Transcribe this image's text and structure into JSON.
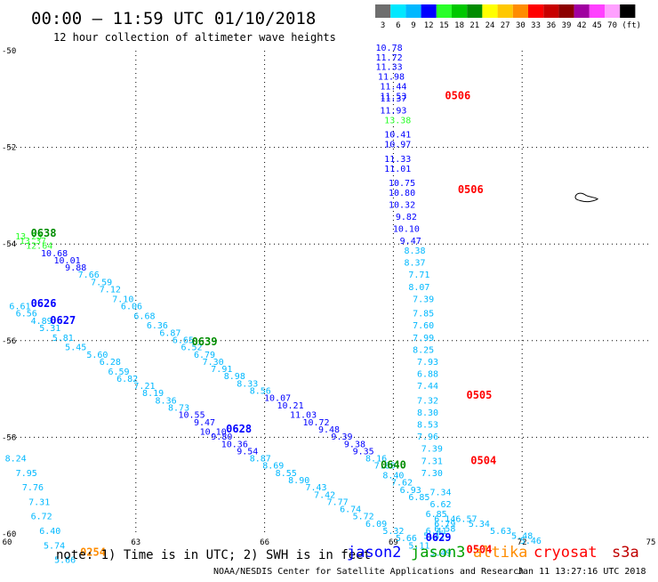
{
  "header": {
    "title": "00:00 – 11:59 UTC 01/10/2018",
    "subtitle": "12 hour collection of altimeter wave heights"
  },
  "scale": {
    "unit": "(ft)",
    "bins": [
      {
        "label": "3",
        "color": "#6e6e6e"
      },
      {
        "label": "6",
        "color": "#00e8ff"
      },
      {
        "label": "9",
        "color": "#00b8ff"
      },
      {
        "label": "12",
        "color": "#0000ff"
      },
      {
        "label": "15",
        "color": "#29ff29"
      },
      {
        "label": "18",
        "color": "#00c800"
      },
      {
        "label": "21",
        "color": "#008c00"
      },
      {
        "label": "24",
        "color": "#ffff00"
      },
      {
        "label": "27",
        "color": "#ffc800"
      },
      {
        "label": "30",
        "color": "#ff8c00"
      },
      {
        "label": "33",
        "color": "#ff0000"
      },
      {
        "label": "36",
        "color": "#c80000"
      },
      {
        "label": "39",
        "color": "#8c0000"
      },
      {
        "label": "42",
        "color": "#a000a0"
      },
      {
        "label": "45",
        "color": "#ff40ff"
      },
      {
        "label": "70",
        "color": "#ffa0ff"
      },
      {
        "label": "",
        "color": "#000000"
      }
    ]
  },
  "map": {
    "lon_min": 60,
    "lon_max": 75,
    "lat_min": -60,
    "lat_max": -50,
    "x_ticks": [
      "60",
      "63",
      "66",
      "69",
      "72",
      "75"
    ],
    "y_ticks": [
      "-50",
      "-52",
      "-54",
      "-56",
      "-58",
      "-60"
    ],
    "grid_style": "dotted"
  },
  "colors": {
    "c1": "#00b8ff",
    "c2": "#0000ff",
    "c3": "#29ff29",
    "c4": "#00c800",
    "c5": "#008c00",
    "time_red": "#ff0000",
    "time_green": "#008c00",
    "time_blue": "#0000ff",
    "time_orange": "#ff8c00",
    "jason2": "#0000ff",
    "jason3": "#00a000",
    "altika": "#ff8c00",
    "cryosat": "#ff0000",
    "s3a": "#c00000"
  },
  "tracks": [
    {
      "name": "pass-upper-right-1",
      "points": [
        {
          "lon": 68.9,
          "lat": -50.0,
          "v": "10.78",
          "c": "c2"
        },
        {
          "lon": 68.9,
          "lat": -50.2,
          "v": "11.72",
          "c": "c2"
        },
        {
          "lon": 68.9,
          "lat": -50.4,
          "v": "11.33",
          "c": "c2"
        },
        {
          "lon": 68.95,
          "lat": -50.6,
          "v": "11.98",
          "c": "c2"
        },
        {
          "lon": 69.0,
          "lat": -50.8,
          "v": "11.44",
          "c": "c2"
        },
        {
          "lon": 69.0,
          "lat": -51.0,
          "v": "11.53",
          "c": "c2"
        },
        {
          "lon": 69.0,
          "lat": -51.05,
          "v": "11.37",
          "c": "c2"
        },
        {
          "lon": 69.0,
          "lat": -51.3,
          "v": "11.93",
          "c": "c2"
        },
        {
          "lon": 69.1,
          "lat": -51.5,
          "v": "13.38",
          "c": "c3"
        },
        {
          "lon": 69.1,
          "lat": -51.8,
          "v": "10.41",
          "c": "c2"
        },
        {
          "lon": 69.1,
          "lat": -52.0,
          "v": "10.97",
          "c": "c2"
        },
        {
          "lon": 69.1,
          "lat": -52.3,
          "v": "11.33",
          "c": "c2"
        },
        {
          "lon": 69.1,
          "lat": -52.5,
          "v": "11.01",
          "c": "c2"
        },
        {
          "lon": 69.2,
          "lat": -52.8,
          "v": "10.75",
          "c": "c2"
        },
        {
          "lon": 69.2,
          "lat": -53.0,
          "v": "10.80",
          "c": "c2"
        },
        {
          "lon": 69.2,
          "lat": -53.25,
          "v": "10.32",
          "c": "c2"
        },
        {
          "lon": 69.3,
          "lat": -53.5,
          "v": "9.82",
          "c": "c2"
        },
        {
          "lon": 69.3,
          "lat": -53.75,
          "v": "10.10",
          "c": "c2"
        },
        {
          "lon": 69.4,
          "lat": -54.0,
          "v": "9.47",
          "c": "c2"
        },
        {
          "lon": 69.5,
          "lat": -54.2,
          "v": "8.38",
          "c": "c1"
        },
        {
          "lon": 69.5,
          "lat": -54.45,
          "v": "8.37",
          "c": "c1"
        },
        {
          "lon": 69.6,
          "lat": -54.7,
          "v": "7.71",
          "c": "c1"
        },
        {
          "lon": 69.6,
          "lat": -54.95,
          "v": "8.07",
          "c": "c1"
        },
        {
          "lon": 69.7,
          "lat": -55.2,
          "v": "7.39",
          "c": "c1"
        },
        {
          "lon": 69.7,
          "lat": -55.5,
          "v": "7.85",
          "c": "c1"
        },
        {
          "lon": 69.7,
          "lat": -55.75,
          "v": "7.60",
          "c": "c1"
        },
        {
          "lon": 69.7,
          "lat": -56.0,
          "v": "7.99",
          "c": "c1"
        },
        {
          "lon": 69.7,
          "lat": -56.25,
          "v": "8.25",
          "c": "c1"
        },
        {
          "lon": 69.8,
          "lat": -56.5,
          "v": "7.93",
          "c": "c1"
        },
        {
          "lon": 69.8,
          "lat": -56.75,
          "v": "6.88",
          "c": "c1"
        },
        {
          "lon": 69.8,
          "lat": -57.0,
          "v": "7.44",
          "c": "c1"
        },
        {
          "lon": 69.8,
          "lat": -57.3,
          "v": "7.32",
          "c": "c1"
        },
        {
          "lon": 69.8,
          "lat": -57.55,
          "v": "8.30",
          "c": "c1"
        },
        {
          "lon": 69.8,
          "lat": -57.8,
          "v": "8.53",
          "c": "c1"
        },
        {
          "lon": 69.8,
          "lat": -58.05,
          "v": "7.96",
          "c": "c1"
        },
        {
          "lon": 69.9,
          "lat": -58.3,
          "v": "7.39",
          "c": "c1"
        },
        {
          "lon": 69.9,
          "lat": -58.55,
          "v": "7.31",
          "c": "c1"
        },
        {
          "lon": 69.9,
          "lat": -58.8,
          "v": "7.30",
          "c": "c1"
        },
        {
          "lon": 70.1,
          "lat": -59.2,
          "v": "7.34",
          "c": "c1"
        },
        {
          "lon": 70.1,
          "lat": -59.45,
          "v": "6.62",
          "c": "c1"
        },
        {
          "lon": 70.0,
          "lat": -59.65,
          "v": "6.85",
          "c": "c1"
        },
        {
          "lon": 70.2,
          "lat": -59.75,
          "v": "6.14",
          "c": "c1"
        },
        {
          "lon": 70.2,
          "lat": -59.85,
          "v": "6.79",
          "c": "c1"
        },
        {
          "lon": 70.2,
          "lat": -59.95,
          "v": "6.58",
          "c": "c1"
        },
        {
          "lon": 70.0,
          "lat": -60.0,
          "v": "6.41",
          "c": "c1"
        },
        {
          "lon": 69.95,
          "lat": -60.1,
          "v": "5.32",
          "c": "c1"
        }
      ]
    },
    {
      "name": "pass-lower-right-2",
      "points": [
        {
          "lon": 70.7,
          "lat": -59.75,
          "v": "6.57",
          "c": "c1"
        },
        {
          "lon": 71.0,
          "lat": -59.85,
          "v": "5.34",
          "c": "c1"
        },
        {
          "lon": 71.5,
          "lat": -60.0,
          "v": "5.63",
          "c": "c1"
        },
        {
          "lon": 72.0,
          "lat": -60.1,
          "v": "5.48",
          "c": "c1"
        },
        {
          "lon": 72.2,
          "lat": -60.2,
          "v": "5.46",
          "c": "c1"
        }
      ]
    },
    {
      "name": "pass-long-diagonal",
      "points": [
        {
          "lon": 60.5,
          "lat": -53.9,
          "v": "13.23",
          "c": "c3"
        },
        {
          "lon": 60.6,
          "lat": -54.0,
          "v": "13.37",
          "c": "c3"
        },
        {
          "lon": 60.75,
          "lat": -54.1,
          "v": "12.64",
          "c": "c3"
        },
        {
          "lon": 61.1,
          "lat": -54.25,
          "v": "10.68",
          "c": "c2"
        },
        {
          "lon": 61.4,
          "lat": -54.4,
          "v": "10.01",
          "c": "c2"
        },
        {
          "lon": 61.6,
          "lat": -54.55,
          "v": "9.88",
          "c": "c2"
        },
        {
          "lon": 61.9,
          "lat": -54.7,
          "v": "7.66",
          "c": "c1"
        },
        {
          "lon": 62.2,
          "lat": -54.85,
          "v": "7.59",
          "c": "c1"
        },
        {
          "lon": 62.4,
          "lat": -55.0,
          "v": "7.12",
          "c": "c1"
        },
        {
          "lon": 62.7,
          "lat": -55.2,
          "v": "7.10",
          "c": "c1"
        },
        {
          "lon": 62.9,
          "lat": -55.35,
          "v": "6.06",
          "c": "c1"
        },
        {
          "lon": 63.2,
          "lat": -55.55,
          "v": "6.68",
          "c": "c1"
        },
        {
          "lon": 63.5,
          "lat": -55.75,
          "v": "6.36",
          "c": "c1"
        },
        {
          "lon": 63.8,
          "lat": -55.9,
          "v": "6.87",
          "c": "c1"
        },
        {
          "lon": 64.1,
          "lat": -56.05,
          "v": "6.65",
          "c": "c1"
        },
        {
          "lon": 64.3,
          "lat": -56.2,
          "v": "6.52",
          "c": "c1"
        },
        {
          "lon": 64.6,
          "lat": -56.35,
          "v": "6.79",
          "c": "c1"
        },
        {
          "lon": 64.8,
          "lat": -56.5,
          "v": "7.30",
          "c": "c1"
        },
        {
          "lon": 65.0,
          "lat": -56.65,
          "v": "7.91",
          "c": "c1"
        },
        {
          "lon": 65.3,
          "lat": -56.8,
          "v": "8.98",
          "c": "c1"
        },
        {
          "lon": 65.6,
          "lat": -56.95,
          "v": "8.33",
          "c": "c1"
        },
        {
          "lon": 65.9,
          "lat": -57.1,
          "v": "8.56",
          "c": "c1"
        },
        {
          "lon": 66.3,
          "lat": -57.25,
          "v": "10.07",
          "c": "c2"
        },
        {
          "lon": 66.6,
          "lat": -57.4,
          "v": "10.21",
          "c": "c2"
        },
        {
          "lon": 66.9,
          "lat": -57.6,
          "v": "11.03",
          "c": "c2"
        },
        {
          "lon": 67.2,
          "lat": -57.75,
          "v": "10.72",
          "c": "c2"
        },
        {
          "lon": 67.5,
          "lat": -57.9,
          "v": "9.48",
          "c": "c2"
        },
        {
          "lon": 67.8,
          "lat": -58.05,
          "v": "9.39",
          "c": "c2"
        },
        {
          "lon": 68.1,
          "lat": -58.2,
          "v": "9.38",
          "c": "c2"
        },
        {
          "lon": 68.3,
          "lat": -58.35,
          "v": "9.35",
          "c": "c2"
        },
        {
          "lon": 68.6,
          "lat": -58.5,
          "v": "8.16",
          "c": "c1"
        },
        {
          "lon": 68.8,
          "lat": -58.65,
          "v": "7.80",
          "c": "c1"
        },
        {
          "lon": 69.0,
          "lat": -58.85,
          "v": "8.40",
          "c": "c1"
        },
        {
          "lon": 69.2,
          "lat": -59.0,
          "v": "7.62",
          "c": "c1"
        },
        {
          "lon": 69.4,
          "lat": -59.15,
          "v": "6.93",
          "c": "c1"
        },
        {
          "lon": 69.6,
          "lat": -59.3,
          "v": "6.85",
          "c": "c1"
        }
      ]
    },
    {
      "name": "pass-mid-diagonal",
      "points": [
        {
          "lon": 60.3,
          "lat": -55.35,
          "v": "6.61",
          "c": "c1"
        },
        {
          "lon": 60.45,
          "lat": -55.5,
          "v": "6.56",
          "c": "c1"
        },
        {
          "lon": 60.8,
          "lat": -55.65,
          "v": "4.89",
          "c": "c1"
        },
        {
          "lon": 61.0,
          "lat": -55.8,
          "v": "5.31",
          "c": "c1"
        },
        {
          "lon": 61.3,
          "lat": -56.0,
          "v": "5.81",
          "c": "c1"
        },
        {
          "lon": 61.6,
          "lat": -56.2,
          "v": "5.45",
          "c": "c1"
        },
        {
          "lon": 62.1,
          "lat": -56.35,
          "v": "5.60",
          "c": "c1"
        },
        {
          "lon": 62.4,
          "lat": -56.5,
          "v": "6.28",
          "c": "c1"
        },
        {
          "lon": 62.6,
          "lat": -56.7,
          "v": "6.59",
          "c": "c1"
        },
        {
          "lon": 62.8,
          "lat": -56.85,
          "v": "6.82",
          "c": "c1"
        },
        {
          "lon": 63.2,
          "lat": -57.0,
          "v": "7.21",
          "c": "c1"
        },
        {
          "lon": 63.4,
          "lat": -57.15,
          "v": "8.19",
          "c": "c1"
        },
        {
          "lon": 63.7,
          "lat": -57.3,
          "v": "8.36",
          "c": "c1"
        },
        {
          "lon": 64.0,
          "lat": -57.45,
          "v": "8.73",
          "c": "c1"
        },
        {
          "lon": 64.3,
          "lat": -57.6,
          "v": "10.55",
          "c": "c2"
        },
        {
          "lon": 64.6,
          "lat": -57.75,
          "v": "9.47",
          "c": "c2"
        },
        {
          "lon": 64.8,
          "lat": -57.95,
          "v": "10.10",
          "c": "c2"
        },
        {
          "lon": 65.0,
          "lat": -58.05,
          "v": "9.80",
          "c": "c2"
        },
        {
          "lon": 65.3,
          "lat": -58.2,
          "v": "10.36",
          "c": "c2"
        },
        {
          "lon": 65.6,
          "lat": -58.35,
          "v": "9.54",
          "c": "c2"
        },
        {
          "lon": 65.9,
          "lat": -58.5,
          "v": "8.87",
          "c": "c1"
        },
        {
          "lon": 66.2,
          "lat": -58.65,
          "v": "8.69",
          "c": "c1"
        },
        {
          "lon": 66.5,
          "lat": -58.8,
          "v": "8.55",
          "c": "c1"
        },
        {
          "lon": 66.8,
          "lat": -58.95,
          "v": "8.90",
          "c": "c1"
        },
        {
          "lon": 67.2,
          "lat": -59.1,
          "v": "7.43",
          "c": "c1"
        },
        {
          "lon": 67.4,
          "lat": -59.25,
          "v": "7.42",
          "c": "c1"
        },
        {
          "lon": 67.7,
          "lat": -59.4,
          "v": "7.77",
          "c": "c1"
        },
        {
          "lon": 68.0,
          "lat": -59.55,
          "v": "6.74",
          "c": "c1"
        },
        {
          "lon": 68.3,
          "lat": -59.7,
          "v": "5.72",
          "c": "c1"
        },
        {
          "lon": 68.6,
          "lat": -59.85,
          "v": "6.09",
          "c": "c1"
        },
        {
          "lon": 69.0,
          "lat": -60.0,
          "v": "5.32",
          "c": "c1"
        },
        {
          "lon": 69.3,
          "lat": -60.15,
          "v": "5.66",
          "c": "c1"
        },
        {
          "lon": 69.6,
          "lat": -60.3,
          "v": "5.11",
          "c": "c1"
        },
        {
          "lon": 70.1,
          "lat": -60.45,
          "v": "5.49",
          "c": "c1"
        }
      ]
    },
    {
      "name": "pass-left-vertical",
      "points": [
        {
          "lon": 60.2,
          "lat": -58.5,
          "v": "8.24",
          "c": "c1"
        },
        {
          "lon": 60.45,
          "lat": -58.8,
          "v": "7.95",
          "c": "c1"
        },
        {
          "lon": 60.6,
          "lat": -59.1,
          "v": "7.76",
          "c": "c1"
        },
        {
          "lon": 60.75,
          "lat": -59.4,
          "v": "7.31",
          "c": "c1"
        },
        {
          "lon": 60.8,
          "lat": -59.7,
          "v": "6.72",
          "c": "c1"
        },
        {
          "lon": 61.0,
          "lat": -60.0,
          "v": "6.40",
          "c": "c1"
        },
        {
          "lon": 61.1,
          "lat": -60.3,
          "v": "5.74",
          "c": "c1"
        },
        {
          "lon": 61.35,
          "lat": -60.6,
          "v": "5.66",
          "c": "c1"
        }
      ]
    }
  ],
  "time_labels": [
    {
      "lon": 70.5,
      "lat": -51.0,
      "v": "0506",
      "c": "time_red"
    },
    {
      "lon": 70.8,
      "lat": -52.95,
      "v": "0506",
      "c": "time_red"
    },
    {
      "lon": 60.85,
      "lat": -53.85,
      "v": "0638",
      "c": "time_green"
    },
    {
      "lon": 60.85,
      "lat": -55.3,
      "v": "0626",
      "c": "time_blue"
    },
    {
      "lon": 61.3,
      "lat": -55.65,
      "v": "0627",
      "c": "time_blue"
    },
    {
      "lon": 64.6,
      "lat": -56.1,
      "v": "0639",
      "c": "time_green"
    },
    {
      "lon": 71.0,
      "lat": -57.2,
      "v": "0505",
      "c": "time_red"
    },
    {
      "lon": 65.4,
      "lat": -57.9,
      "v": "0628",
      "c": "time_blue"
    },
    {
      "lon": 69.0,
      "lat": -58.65,
      "v": "0640",
      "c": "time_green"
    },
    {
      "lon": 71.1,
      "lat": -58.55,
      "v": "0504",
      "c": "time_red"
    },
    {
      "lon": 70.05,
      "lat": -60.15,
      "v": "0629",
      "c": "time_blue"
    },
    {
      "lon": 71.0,
      "lat": -60.4,
      "v": "0504",
      "c": "time_red"
    },
    {
      "lon": 62.0,
      "lat": -60.45,
      "v": "0254",
      "c": "time_orange"
    }
  ],
  "island": {
    "lon": 73.45,
    "lat": -53.05
  },
  "footer": {
    "note": "note: 1) Time is in UTC; 2) SWH is in feet",
    "jason2": "jason2",
    "jason3": "jason3",
    "altika": "altika",
    "cryosat": "cryosat",
    "s3a": "s3a",
    "credit": "NOAA/NESDIS Center for Satellite Applications and Research",
    "timestamp": "Jan 11 13:27:16 UTC 2018"
  }
}
